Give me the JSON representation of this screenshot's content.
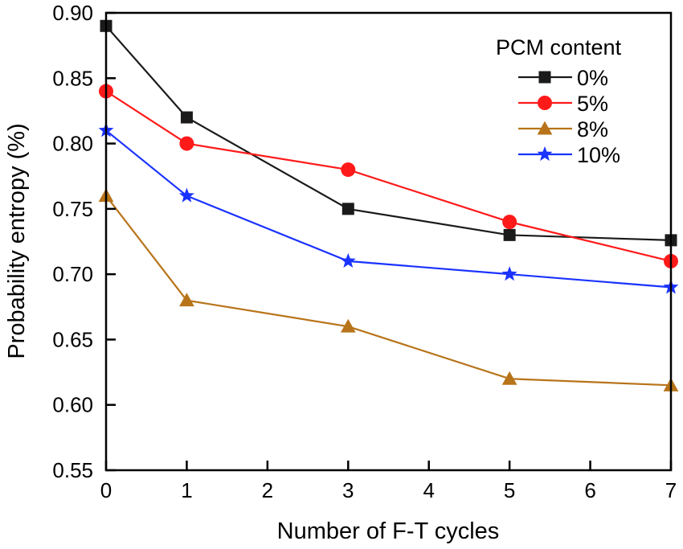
{
  "chart_data": {
    "type": "line",
    "title": "",
    "xlabel": "Number of F-T cycles",
    "ylabel": "Probability entropy (%)",
    "xlim": [
      0,
      7
    ],
    "ylim": [
      0.55,
      0.9
    ],
    "xticks": [
      0,
      1,
      2,
      3,
      4,
      5,
      6,
      7
    ],
    "yticks": [
      0.55,
      0.6,
      0.65,
      0.7,
      0.75,
      0.8,
      0.85,
      0.9
    ],
    "x": [
      0,
      1,
      3,
      5,
      7
    ],
    "legend_title": "PCM content",
    "legend_position": "top-right",
    "grid": false,
    "series": [
      {
        "name": "0%",
        "values": [
          0.89,
          0.82,
          0.75,
          0.73,
          0.726
        ],
        "color": "#1a1a1a",
        "marker": "square"
      },
      {
        "name": "5%",
        "values": [
          0.84,
          0.8,
          0.78,
          0.74,
          0.71
        ],
        "color": "#ff1a1a",
        "marker": "circle"
      },
      {
        "name": "8%",
        "values": [
          0.76,
          0.68,
          0.66,
          0.62,
          0.615
        ],
        "color": "#b8741a",
        "marker": "triangle"
      },
      {
        "name": "10%",
        "values": [
          0.81,
          0.76,
          0.71,
          0.7,
          0.69
        ],
        "color": "#1a33ff",
        "marker": "star"
      }
    ]
  }
}
